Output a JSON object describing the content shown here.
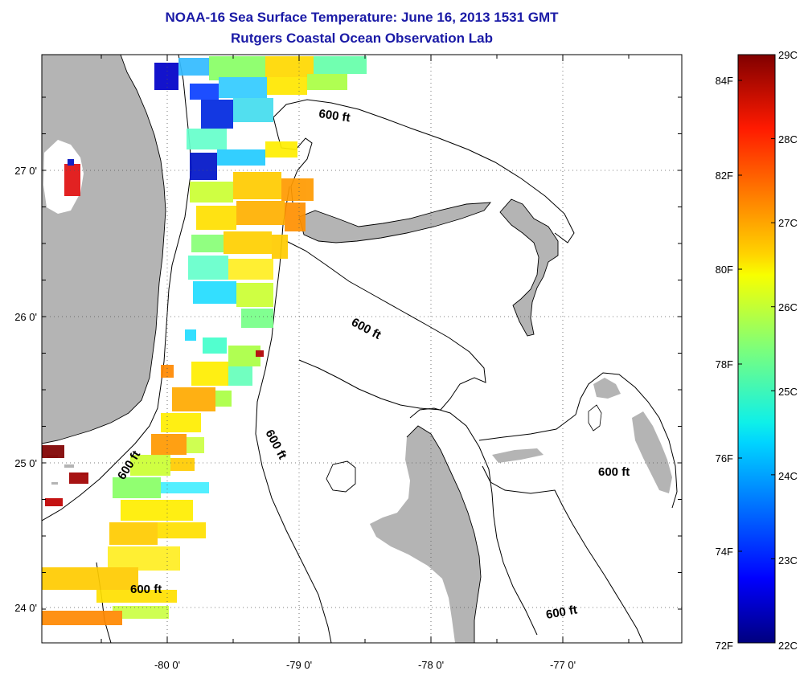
{
  "title": "NOAA-16 Sea Surface Temperature:  June 16, 2013 1531 GMT",
  "subtitle": "Rutgers Coastal Ocean Observation Lab",
  "lat_ticks": [
    "27 0'",
    "26 0'",
    "25 0'",
    "24 0'"
  ],
  "lon_ticks": [
    "-80 0'",
    "-79 0'",
    "-78 0'",
    "-77 0'"
  ],
  "contour_label": "600 ft",
  "colorbar": {
    "fahrenheit_labels": [
      "84F",
      "82F",
      "80F",
      "78F",
      "76F",
      "74F",
      "72F"
    ],
    "celsius_labels": [
      "29C",
      "28C",
      "27C",
      "26C",
      "25C",
      "24C",
      "23C",
      "22C"
    ],
    "range_c": [
      22,
      29
    ]
  },
  "colors": {
    "title": "#1a1aa6",
    "land": "#b4b4b4"
  }
}
